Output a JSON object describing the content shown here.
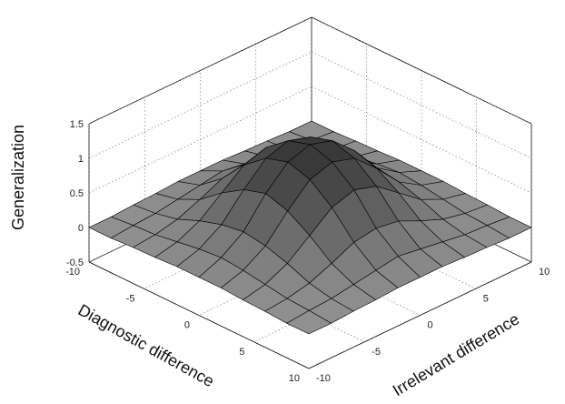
{
  "chart_data": {
    "type": "surface",
    "title": "",
    "xlabel": "Diagnostic difference",
    "ylabel": "Irrelevant difference",
    "zlabel": "Generalization",
    "xlim": [
      -10,
      10
    ],
    "ylim": [
      -10,
      10
    ],
    "zlim": [
      -0.5,
      1.5
    ],
    "x_ticks": [
      "-10",
      "-5",
      "0",
      "5",
      "10"
    ],
    "y_ticks": [
      "-10",
      "-5",
      "0",
      "5",
      "10"
    ],
    "z_ticks": [
      "-0.5",
      "0",
      "0.5",
      "1",
      "1.5"
    ],
    "grid": true,
    "colormap": "gray",
    "x": [
      -10,
      -8,
      -6,
      -4,
      -2,
      0,
      2,
      4,
      6,
      8,
      10
    ],
    "y": [
      -10,
      -8,
      -6,
      -4,
      -2,
      0,
      2,
      4,
      6,
      8,
      10
    ],
    "z": [
      [
        0.0,
        0.0,
        0.02,
        0.03,
        0.05,
        0.05,
        0.05,
        0.03,
        0.02,
        0.0,
        0.0
      ],
      [
        0.0,
        0.03,
        0.05,
        0.1,
        0.15,
        0.2,
        0.15,
        0.1,
        0.05,
        0.03,
        0.0
      ],
      [
        0.02,
        0.05,
        0.12,
        0.25,
        0.4,
        0.45,
        0.4,
        0.25,
        0.12,
        0.05,
        0.02
      ],
      [
        0.03,
        0.1,
        0.25,
        0.5,
        0.75,
        0.85,
        0.75,
        0.5,
        0.25,
        0.1,
        0.03
      ],
      [
        0.05,
        0.15,
        0.35,
        0.7,
        1.0,
        1.1,
        1.0,
        0.7,
        0.35,
        0.15,
        0.05
      ],
      [
        0.05,
        0.18,
        0.4,
        0.8,
        1.1,
        1.2,
        1.1,
        0.8,
        0.4,
        0.18,
        0.05
      ],
      [
        0.05,
        0.15,
        0.35,
        0.7,
        1.0,
        1.1,
        1.0,
        0.7,
        0.35,
        0.15,
        0.05
      ],
      [
        0.03,
        0.1,
        0.25,
        0.5,
        0.75,
        0.85,
        0.75,
        0.5,
        0.25,
        0.1,
        0.03
      ],
      [
        0.02,
        0.05,
        0.12,
        0.25,
        0.4,
        0.45,
        0.4,
        0.25,
        0.12,
        0.05,
        0.02
      ],
      [
        0.0,
        0.03,
        0.05,
        0.1,
        0.15,
        0.2,
        0.15,
        0.1,
        0.05,
        0.03,
        0.0
      ],
      [
        0.0,
        0.0,
        0.02,
        0.03,
        0.05,
        0.05,
        0.05,
        0.03,
        0.02,
        0.0,
        0.0
      ]
    ]
  }
}
